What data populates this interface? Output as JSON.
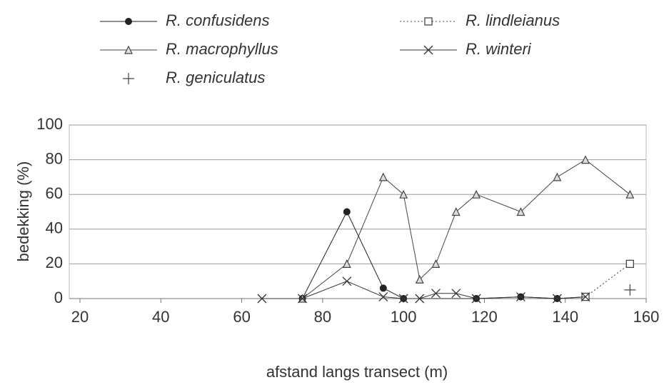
{
  "chart_data": {
    "type": "line",
    "xlabel": "afstand langs transect (m)",
    "ylabel": "bedekking (%)",
    "xlim": [
      20,
      160
    ],
    "xticks": [
      20,
      40,
      60,
      80,
      100,
      120,
      140,
      160
    ],
    "ylim": [
      0,
      100
    ],
    "yticks": [
      0,
      20,
      40,
      60,
      80,
      100
    ],
    "grid": true,
    "series": [
      {
        "name": "R. confusidens",
        "color": "#222",
        "marker": "circle",
        "line": "solid",
        "x": [
          75,
          86,
          95,
          100,
          118,
          129,
          138,
          145
        ],
        "values": [
          0,
          50,
          6,
          0,
          0,
          1,
          0,
          1
        ]
      },
      {
        "name": "R. macrophyllus",
        "color": "#444",
        "marker": "triangle",
        "line": "solid",
        "x": [
          75,
          86,
          95,
          100,
          104,
          108,
          113,
          118,
          129,
          138,
          145,
          156
        ],
        "values": [
          0,
          20,
          70,
          60,
          11,
          20,
          50,
          60,
          50,
          70,
          80,
          60
        ]
      },
      {
        "name": "R. geniculatus",
        "color": "#444",
        "marker": "plus",
        "line": "none",
        "x": [
          156
        ],
        "values": [
          5
        ]
      },
      {
        "name": "R. lindleianus",
        "color": "#444",
        "marker": "square",
        "line": "dotted",
        "x": [
          145,
          156
        ],
        "values": [
          1,
          20
        ]
      },
      {
        "name": "R. winteri",
        "color": "#333",
        "marker": "cross",
        "line": "solid",
        "x": [
          65,
          75,
          86,
          95,
          100,
          104,
          108,
          113,
          118,
          129,
          138,
          145
        ],
        "values": [
          0,
          0,
          10,
          1,
          0,
          0,
          3,
          3,
          0,
          1,
          0,
          1
        ]
      }
    ]
  }
}
